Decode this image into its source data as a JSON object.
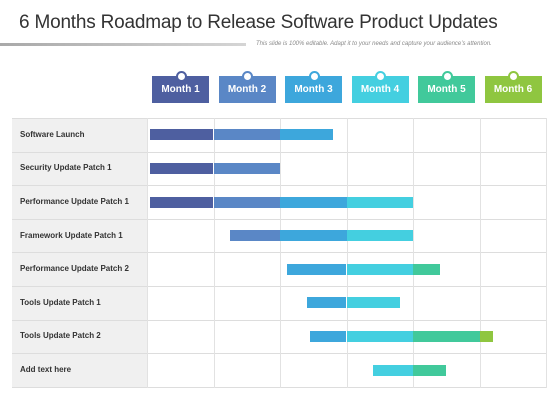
{
  "header": {
    "title": "6 Months Roadmap to Release Software Product Updates",
    "subtitle": "This slide is 100% editable. Adapt it to your needs and capture your audience’s attention."
  },
  "months": [
    {
      "label": "Month 1",
      "color": "#4e5fa0"
    },
    {
      "label": "Month 2",
      "color": "#5a87c6"
    },
    {
      "label": "Month 3",
      "color": "#3da7dc"
    },
    {
      "label": "Month 4",
      "color": "#44cfe0"
    },
    {
      "label": "Month 5",
      "color": "#41c99b"
    },
    {
      "label": "Month 6",
      "color": "#8fc640"
    }
  ],
  "rows": [
    {
      "label": "Software Launch",
      "start": 0.05,
      "end": 2.8
    },
    {
      "label": "Security Update Patch 1",
      "start": 0.05,
      "end": 2.0
    },
    {
      "label": "Performance Update Patch 1",
      "start": 0.05,
      "end": 4.0
    },
    {
      "label": "Framework Update Patch 1",
      "start": 1.25,
      "end": 4.0
    },
    {
      "label": "Performance Update Patch 2",
      "start": 2.1,
      "end": 4.4
    },
    {
      "label": "Tools Update Patch 1",
      "start": 2.4,
      "end": 3.8
    },
    {
      "label": "Tools Update Patch 2",
      "start": 2.45,
      "end": 5.2
    },
    {
      "label": "Add text here",
      "start": 3.4,
      "end": 4.5
    }
  ]
}
